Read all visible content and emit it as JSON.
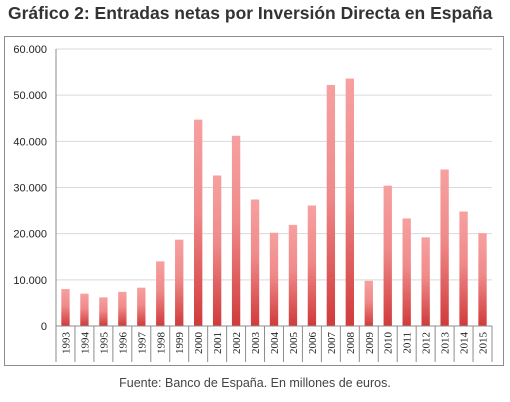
{
  "title": "Gráfico 2: Entradas netas por Inversión Directa en España",
  "source_note": "Fuente: Banco de España. En millones de euros.",
  "colors": {
    "bar_top": "#f7a0a0",
    "bar_bottom": "#d03a3a",
    "grid": "#d9d9d9",
    "axis_text": "#222222"
  },
  "chart_data": {
    "type": "bar",
    "title": "Gráfico 2: Entradas netas por Inversión Directa en España",
    "xlabel": "",
    "ylabel": "",
    "ylim": [
      0,
      60000
    ],
    "yticks": [
      0,
      10000,
      20000,
      30000,
      40000,
      50000,
      60000
    ],
    "ytick_labels": [
      "0",
      "10.000",
      "20.000",
      "30.000",
      "40.000",
      "50.000",
      "60.000"
    ],
    "grid": true,
    "legend": "none",
    "categories": [
      "1993",
      "1994",
      "1995",
      "1996",
      "1997",
      "1998",
      "1999",
      "2000",
      "2001",
      "2002",
      "2003",
      "2004",
      "2005",
      "2006",
      "2007",
      "2008",
      "2009",
      "2010",
      "2011",
      "2012",
      "2013",
      "2014",
      "2015"
    ],
    "values": [
      8000,
      7000,
      6200,
      7400,
      8300,
      14000,
      18700,
      44700,
      32600,
      41200,
      27400,
      20200,
      21900,
      26100,
      52200,
      53600,
      9800,
      30400,
      23300,
      19200,
      33900,
      24800,
      20100
    ]
  }
}
